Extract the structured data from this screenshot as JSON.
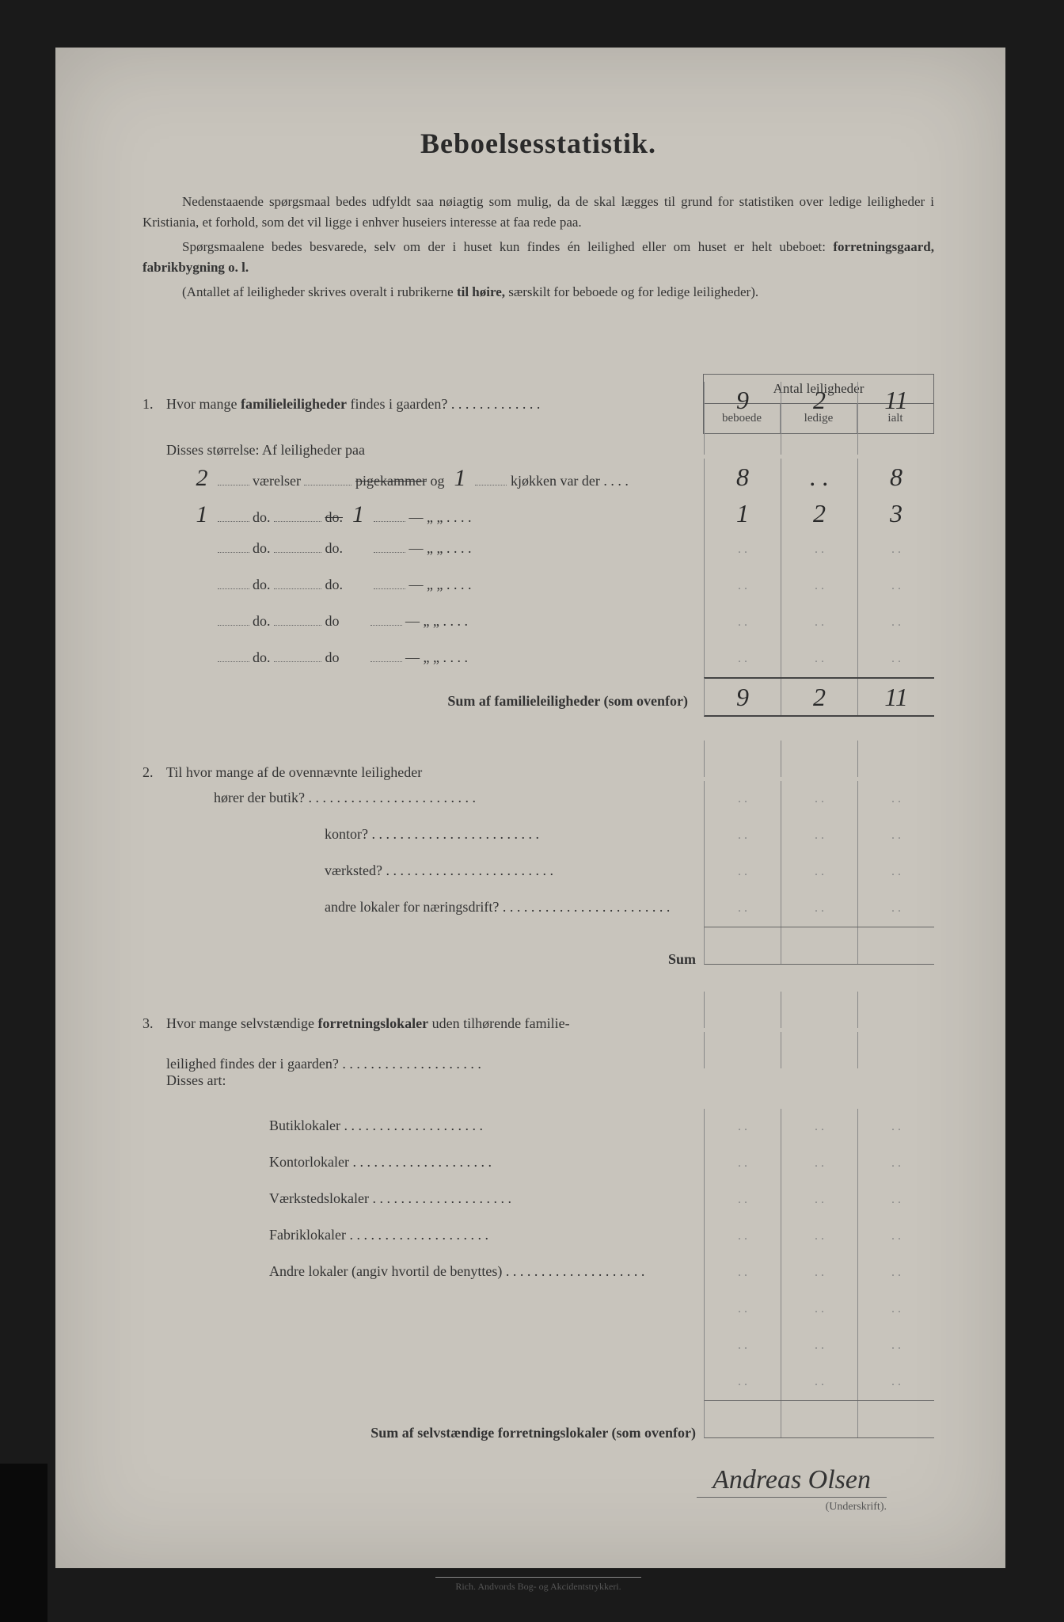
{
  "title": "Beboelsesstatistik.",
  "intro": {
    "p1_a": "Nedenstaaende spørgsmaal bedes udfyldt saa nøiagtig som mulig, da de skal lægges til grund for statistiken over ",
    "p1_b": "ledige leiligheder",
    "p1_c": " i Kristiania, et forhold, som det vil ligge i enhver huseiers interesse at faa rede paa.",
    "p2_a": "Spørgsmaalene bedes besvarede, selv om der i huset kun findes én leilighed eller om huset er helt ubeboet: ",
    "p2_b": "forretningsgaard, fabrikbygning o. l.",
    "p3_a": "(Antallet af leiligheder skrives overalt i rubrikerne ",
    "p3_b": "til høire,",
    "p3_c": " særskilt for beboede og for ledige leiligheder)."
  },
  "table_header": {
    "title": "Antal leiligheder",
    "col1": "beboede",
    "col2": "ledige",
    "col3": "ialt"
  },
  "q1": {
    "num": "1.",
    "text": "Hvor mange familieleiligheder findes i gaarden?",
    "beboede": "9",
    "ledige": "2",
    "ialt": "11",
    "sub_label": "Disses størrelse:  Af leiligheder paa",
    "rows": [
      {
        "v": "2",
        "mid": "værelser",
        "pk": "pigekammer",
        "og": "og",
        "k": "1",
        "tail": "kjøkken var der",
        "b": "8",
        "l": "",
        "i": "8"
      },
      {
        "v": "1",
        "mid": "do.",
        "pk": "do.",
        "og": "",
        "k": "1",
        "tail": "—     „   „",
        "b": "1",
        "l": "2",
        "i": "3"
      },
      {
        "v": "",
        "mid": "do.",
        "pk": "do.",
        "og": "",
        "k": "",
        "tail": "—     „   „",
        "b": "",
        "l": "",
        "i": ""
      },
      {
        "v": "",
        "mid": "do.",
        "pk": "do.",
        "og": "",
        "k": "",
        "tail": "—     „   „",
        "b": "",
        "l": "",
        "i": ""
      },
      {
        "v": "",
        "mid": "do.",
        "pk": "do",
        "og": "",
        "k": "",
        "tail": "—     „   „",
        "b": "",
        "l": "",
        "i": ""
      },
      {
        "v": "",
        "mid": "do.",
        "pk": "do",
        "og": "",
        "k": "",
        "tail": "—     „   „",
        "b": "",
        "l": "",
        "i": ""
      }
    ],
    "sum_label": "Sum af familieleiligheder (som ovenfor)",
    "sum": {
      "b": "9",
      "l": "2",
      "i": "11"
    }
  },
  "q2": {
    "num": "2.",
    "text": "Til hvor mange af de ovennævnte leiligheder",
    "rows": [
      {
        "t": "hører der butik?"
      },
      {
        "t": "kontor?"
      },
      {
        "t": "værksted?"
      },
      {
        "t": "andre lokaler for næringsdrift?"
      }
    ],
    "sum_label": "Sum"
  },
  "q3": {
    "num": "3.",
    "text_a": "Hvor mange selvstændige forretningslokaler uden tilhørende familie-",
    "text_b": "leilighed findes der i gaarden?",
    "sub_label": "Disses art:",
    "rows": [
      {
        "t": "Butiklokaler"
      },
      {
        "t": "Kontorlokaler"
      },
      {
        "t": "Værkstedslokaler"
      },
      {
        "t": "Fabriklokaler"
      },
      {
        "t": "Andre lokaler (angiv hvortil de benyttes)"
      }
    ],
    "sum_label": "Sum af selvstændige forretningslokaler (som ovenfor)"
  },
  "signature": "Andreas Olsen",
  "signature_label": "(Underskrift).",
  "footer": "Rich. Andvords Bog- og Akcidentstrykkeri."
}
